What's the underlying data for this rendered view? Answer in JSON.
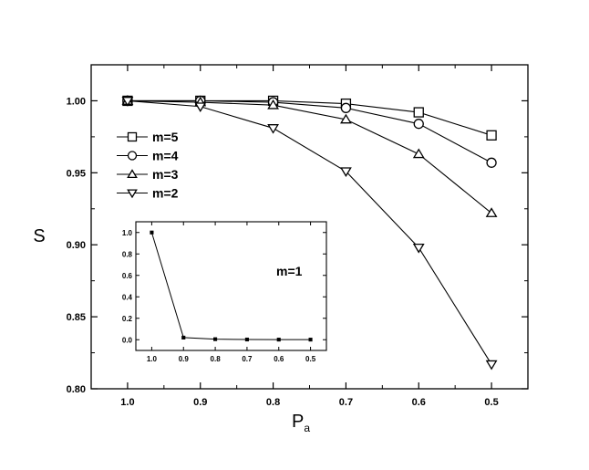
{
  "chart_data": [
    {
      "type": "line",
      "title": "",
      "xlabel": "P",
      "xlabel_sub": "a",
      "ylabel": "S",
      "x_reversed": true,
      "xlim": [
        1.05,
        0.45
      ],
      "ylim": [
        0.8,
        1.025
      ],
      "x_ticks": [
        1.0,
        0.9,
        0.8,
        0.7,
        0.6,
        0.5
      ],
      "x_tick_labels": [
        "1.0",
        "0.9",
        "0.8",
        "0.7",
        "0.6",
        "0.5"
      ],
      "y_ticks": [
        0.8,
        0.85,
        0.9,
        0.95,
        1.0
      ],
      "y_tick_labels": [
        "0.80",
        "0.85",
        "0.90",
        "0.95",
        "1.00"
      ],
      "grid": false,
      "legend_placement": "left",
      "x": [
        1.0,
        0.9,
        0.8,
        0.7,
        0.6,
        0.5
      ],
      "series": [
        {
          "name": "m=5",
          "marker": "square",
          "values": [
            1.0,
            1.0,
            1.0,
            0.998,
            0.992,
            0.976
          ]
        },
        {
          "name": "m=4",
          "marker": "circle",
          "values": [
            1.0,
            1.0,
            0.999,
            0.995,
            0.984,
            0.957
          ]
        },
        {
          "name": "m=3",
          "marker": "triangle-up",
          "values": [
            1.0,
            0.999,
            0.997,
            0.987,
            0.963,
            0.922
          ]
        },
        {
          "name": "m=2",
          "marker": "triangle-down",
          "values": [
            1.0,
            0.996,
            0.981,
            0.951,
            0.898,
            0.817
          ]
        }
      ]
    },
    {
      "type": "line",
      "title": "",
      "annotation": "m=1",
      "x_reversed": true,
      "xlim": [
        1.05,
        0.45
      ],
      "ylim": [
        -0.1,
        1.1
      ],
      "x_ticks": [
        1.0,
        0.9,
        0.8,
        0.7,
        0.6,
        0.5
      ],
      "x_tick_labels": [
        "1.0",
        "0.9",
        "0.8",
        "0.7",
        "0.6",
        "0.5"
      ],
      "y_ticks": [
        0.0,
        0.2,
        0.4,
        0.6,
        0.8,
        1.0
      ],
      "y_tick_labels": [
        "0.0",
        "0.2",
        "0.4",
        "0.6",
        "0.8",
        "1.0"
      ],
      "grid": false,
      "x": [
        1.0,
        0.9,
        0.8,
        0.7,
        0.6,
        0.5
      ],
      "series": [
        {
          "marker": "square",
          "values": [
            1.0,
            0.02,
            0.005,
            0.002,
            0.001,
            0.001
          ]
        }
      ]
    }
  ]
}
